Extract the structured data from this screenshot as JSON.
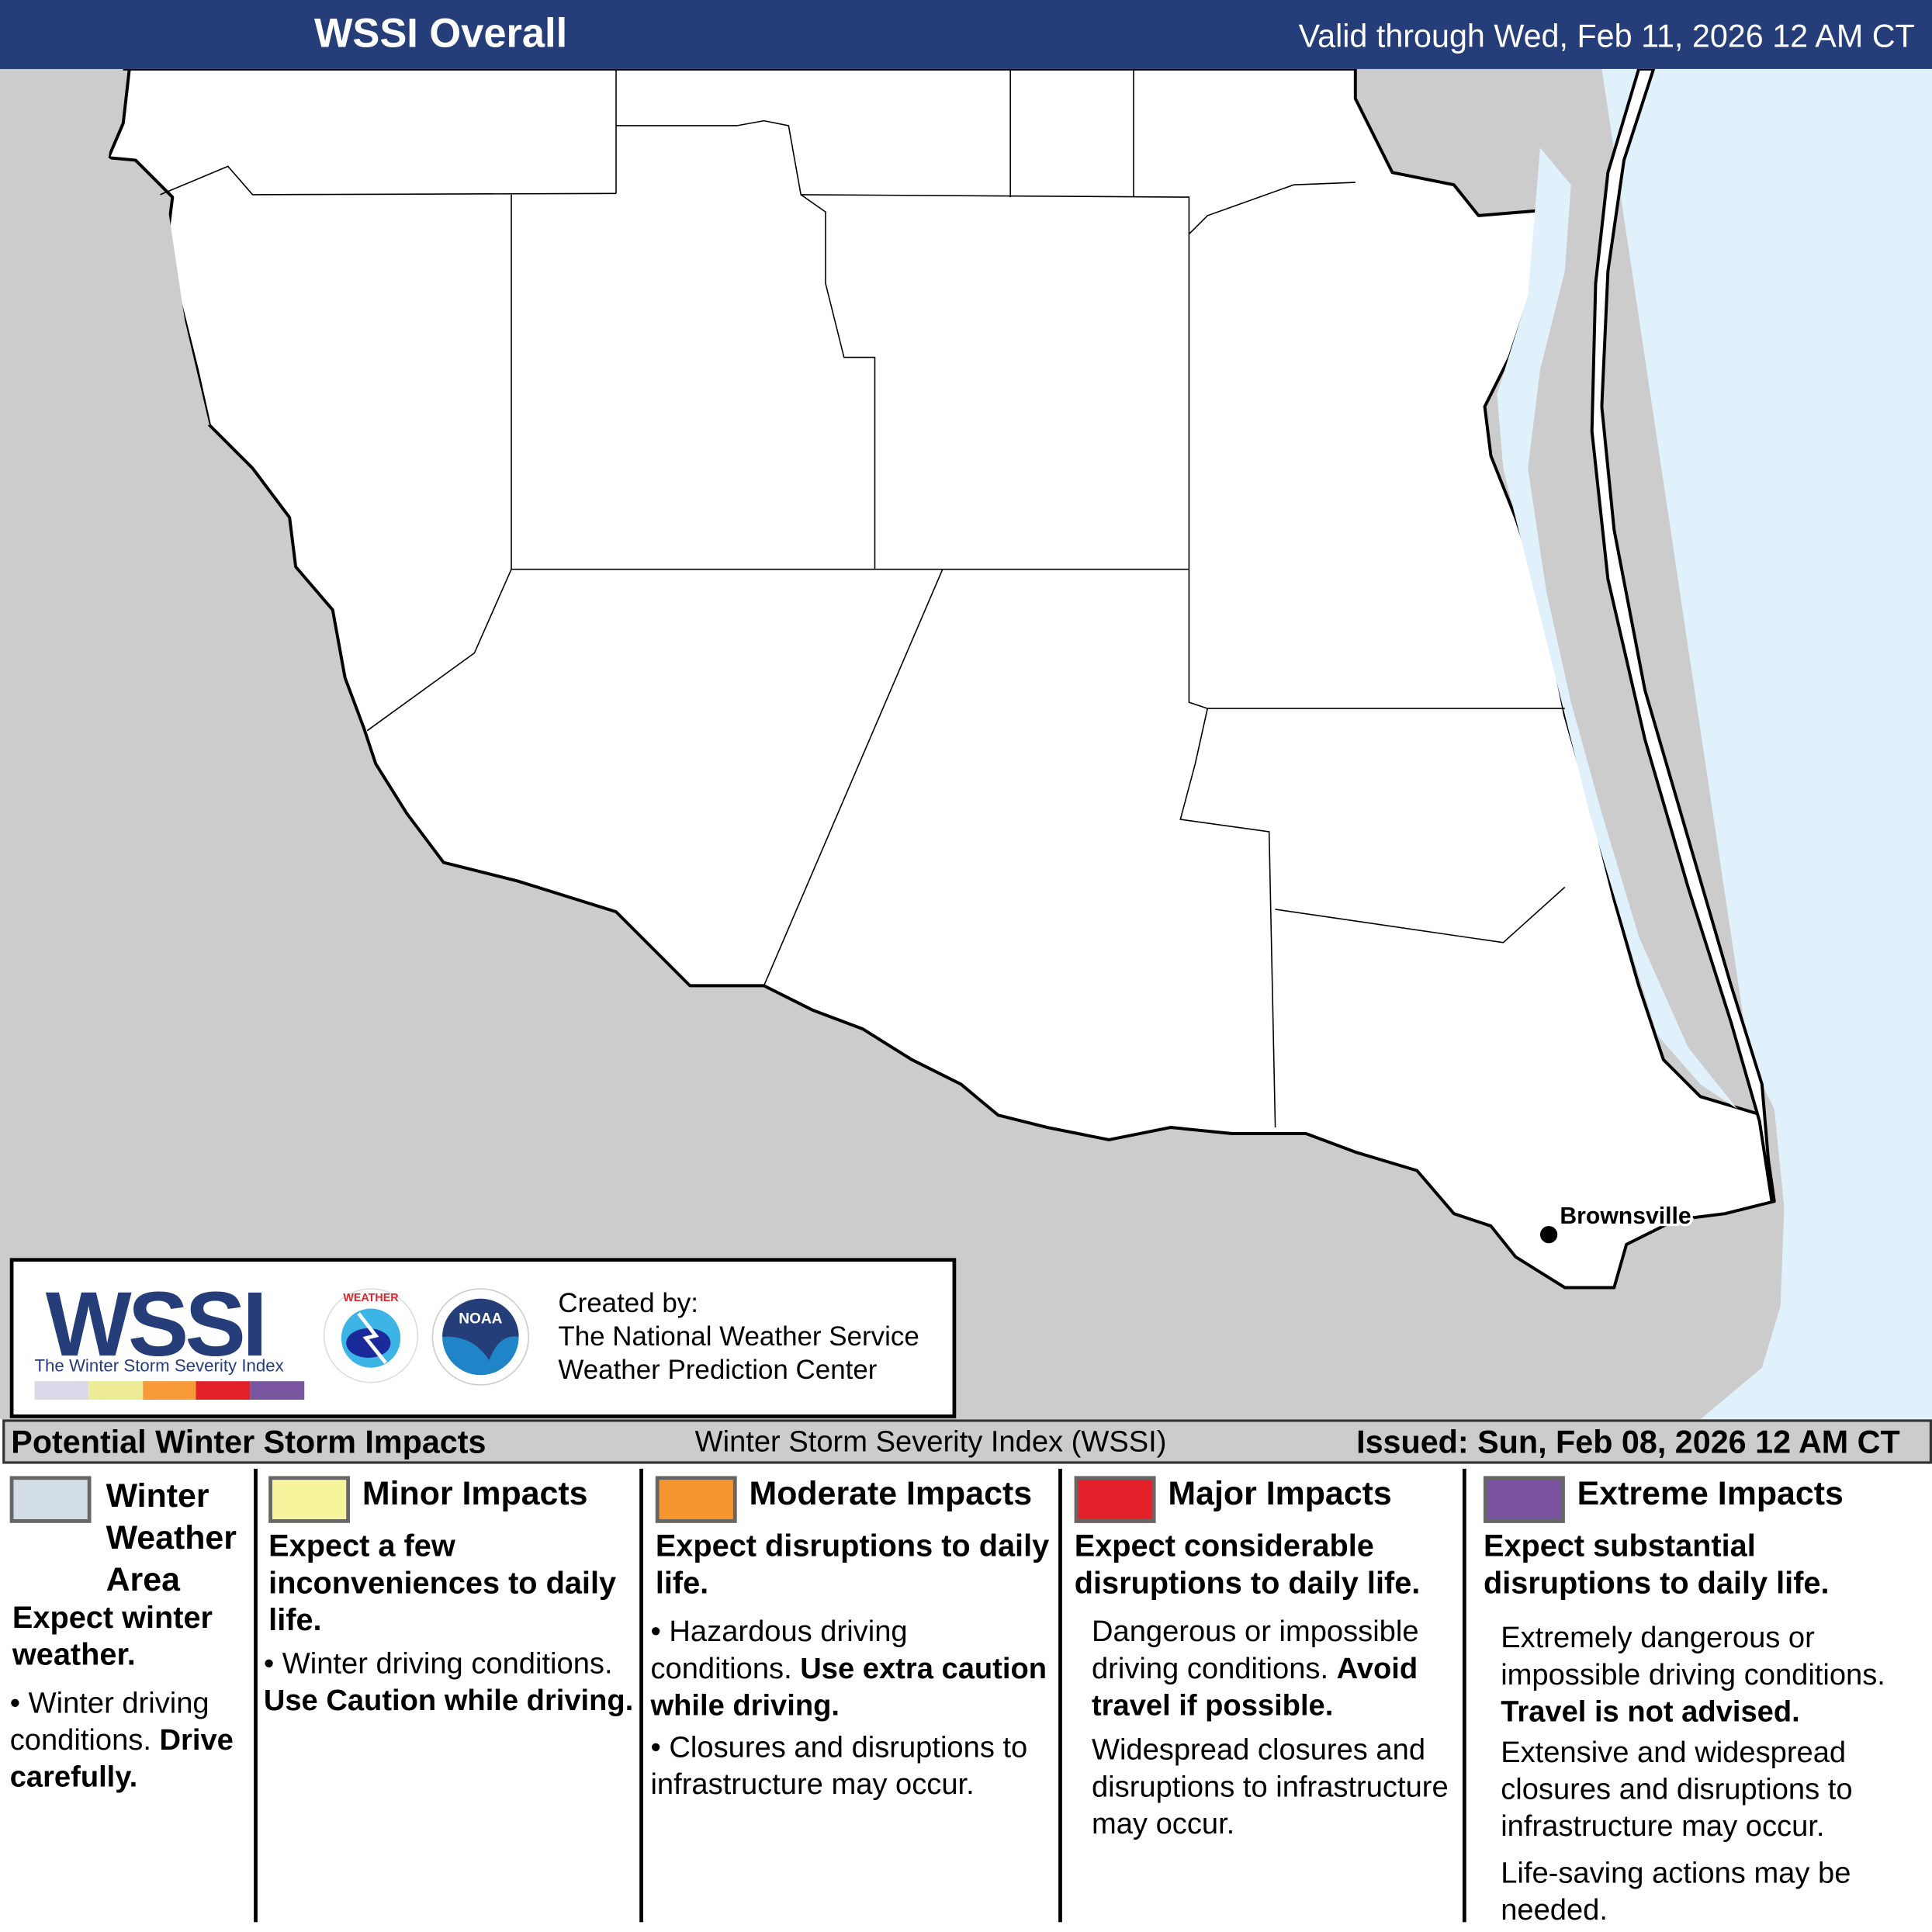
{
  "header": {
    "title": "WSSI Overall",
    "valid": "Valid through Wed, Feb 11, 2026 12 AM CT"
  },
  "map": {
    "city": "Brownsville",
    "colors": {
      "land": "#ffffff",
      "outside": "#cccccc",
      "water": "#e1f1fc"
    }
  },
  "credits": {
    "logo": "WSSI",
    "logo_sub": "The Winter Storm Severity Index",
    "logo_colors": [
      "#d9d9e8",
      "#ecec96",
      "#f79a38",
      "#e32028",
      "#7a55a0"
    ],
    "created_by": "Created by:",
    "org1": "The National Weather Service",
    "org2": "Weather Prediction Center",
    "nws_logo_text": "NATIONAL WEATHER SERVICE",
    "noaa_logo_text": "NOAA"
  },
  "legend_header": {
    "left": "Potential Winter Storm Impacts",
    "middle": "Winter Storm Severity Index (WSSI)",
    "right": "Issued: Sun, Feb 08, 2026 12 AM CT"
  },
  "legend": [
    {
      "title": "Winter Weather Area",
      "color": "#d3dde6",
      "summary": "Expect winter weather.",
      "bullet1": "Winter driving conditions.",
      "bullet1_bold": "Drive carefully."
    },
    {
      "title": "Minor Impacts",
      "color": "#f7f49e",
      "summary": "Expect a few inconveniences to daily life.",
      "bullet1": "Winter driving conditions.",
      "bullet1_bold": "Use Caution while driving."
    },
    {
      "title": "Moderate Impacts",
      "color": "#f7952f",
      "summary": "Expect disruptions to daily life.",
      "bullet1": "Hazardous driving conditions.",
      "bullet1_bold": "Use extra caution while driving.",
      "bullet2": "Closures and disruptions to infrastructure may occur."
    },
    {
      "title": "Major Impacts",
      "color": "#e3212b",
      "summary": "Expect considerable disruptions to daily life.",
      "bullet1": "Dangerous or impossible driving conditions.",
      "bullet1_bold": "Avoid travel if possible.",
      "bullet2": "Widespread closures and disruptions to infrastructure may occur."
    },
    {
      "title": "Extreme Impacts",
      "color": "#7953a0",
      "summary": "Expect substantial disruptions to daily life.",
      "bullet1": "Extremely dangerous or impossible driving conditions.",
      "bullet1_bold": "Travel is not advised.",
      "bullet2": "Extensive and widespread closures and disruptions to infrastructure may occur.",
      "bullet3": "Life-saving actions may be needed."
    }
  ]
}
